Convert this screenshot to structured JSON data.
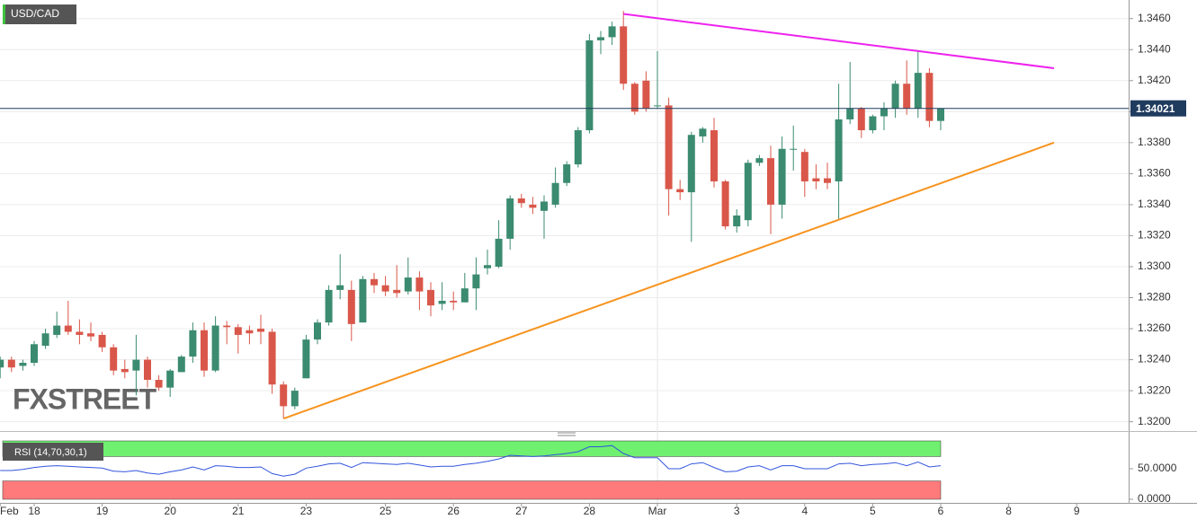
{
  "chart_data": {
    "type": "candlestick",
    "title": "USD/CAD",
    "watermark": "FXSTREET",
    "categories": [
      "Feb",
      null,
      null,
      "18",
      null,
      null,
      null,
      null,
      null,
      "19",
      null,
      null,
      null,
      null,
      null,
      "20",
      null,
      null,
      null,
      null,
      null,
      "21",
      null,
      null,
      null,
      null,
      null,
      "23",
      null,
      null,
      null,
      null,
      null,
      null,
      "25",
      null,
      null,
      null,
      null,
      null,
      "26",
      null,
      null,
      null,
      null,
      null,
      "27",
      null,
      null,
      null,
      null,
      null,
      "28",
      null,
      null,
      null,
      null,
      null,
      "Mar",
      null,
      null,
      null,
      null,
      null,
      null,
      "3",
      null,
      null,
      null,
      null,
      null,
      "4",
      null,
      null,
      null,
      null,
      null,
      "5",
      null,
      null,
      null,
      null,
      null,
      "6",
      null,
      null,
      null,
      null,
      null,
      "8",
      null,
      null,
      null,
      null,
      null,
      "9"
    ],
    "open": [
      1.3235,
      1.324,
      1.3236,
      1.3238,
      1.3249,
      1.3256,
      1.3262,
      1.3258,
      1.3257,
      1.3256,
      1.3248,
      1.3234,
      1.3233,
      1.324,
      1.3227,
      1.3222,
      1.3232,
      1.3242,
      1.3259,
      1.3233,
      1.3262,
      1.3261,
      1.3259,
      1.326,
      1.3258,
      1.3224,
      1.321,
      1.3228,
      1.3253,
      1.3264,
      1.3285,
      1.3285,
      1.3264,
      1.3292,
      1.3288,
      1.3285,
      1.3284,
      1.3293,
      1.3285,
      1.3276,
      1.3278,
      1.3277,
      1.3286,
      1.3299,
      1.33,
      1.3318,
      1.3344,
      1.334,
      1.3336,
      1.334,
      1.3354,
      1.3366,
      1.3388,
      1.3446,
      1.3448,
      1.3455,
      1.3418,
      1.342,
      1.3404,
      1.3404,
      1.335,
      1.3348,
      1.3384,
      1.3388,
      1.3355,
      1.3326,
      1.333,
      1.3367,
      1.337,
      1.334,
      1.3376,
      1.3374,
      1.3357,
      1.3357,
      1.3355,
      1.3395,
      1.3402,
      1.3388,
      1.3397,
      1.3402,
      1.3418,
      1.3402,
      1.3425,
      1.3394,
      null,
      null,
      null,
      null,
      null,
      null,
      null,
      null,
      null,
      null,
      null,
      null
    ],
    "high": [
      1.3242,
      1.3242,
      1.324,
      1.3252,
      1.326,
      1.3271,
      1.3278,
      1.3266,
      1.3264,
      1.3258,
      1.325,
      1.324,
      1.3256,
      1.3242,
      1.323,
      1.3234,
      1.3243,
      1.3264,
      1.3264,
      1.3268,
      1.3265,
      1.3263,
      1.3262,
      1.3269,
      1.326,
      1.3226,
      1.3222,
      1.3256,
      1.3266,
      1.3288,
      1.3308,
      1.3291,
      1.3294,
      1.3296,
      1.3294,
      1.3301,
      1.3306,
      1.3297,
      1.329,
      1.329,
      1.3284,
      1.3296,
      1.3306,
      1.3311,
      1.333,
      1.3346,
      1.3347,
      1.3345,
      1.3346,
      1.3364,
      1.3368,
      1.339,
      1.345,
      1.3452,
      1.3458,
      1.3465,
      1.3419,
      1.3426,
      1.3439,
      1.3409,
      1.3356,
      1.3387,
      1.339,
      1.3396,
      1.3356,
      1.3337,
      1.3369,
      1.3372,
      1.3378,
      1.3384,
      1.3391,
      1.3376,
      1.3366,
      1.3367,
      1.3418,
      1.3432,
      1.3403,
      1.3398,
      1.3406,
      1.342,
      1.3433,
      1.3439,
      1.3428,
      1.3402,
      null,
      null,
      null,
      null,
      null,
      null,
      null,
      null,
      null,
      null,
      null,
      null
    ],
    "low": [
      1.3228,
      1.3232,
      1.3233,
      1.3236,
      1.3247,
      1.3254,
      1.3256,
      1.325,
      1.3252,
      1.3245,
      1.323,
      1.3228,
      1.3217,
      1.3222,
      1.322,
      1.3216,
      1.3232,
      1.3238,
      1.3229,
      1.3232,
      1.325,
      1.3244,
      1.325,
      1.325,
      1.3218,
      1.3202,
      1.3208,
      1.3228,
      1.325,
      1.3262,
      1.3279,
      1.3252,
      1.3264,
      1.3283,
      1.3281,
      1.328,
      1.3282,
      1.3272,
      1.3268,
      1.3272,
      1.3272,
      1.3277,
      1.3272,
      1.3295,
      1.3299,
      1.3311,
      1.3338,
      1.3334,
      1.3318,
      1.3338,
      1.3352,
      1.3364,
      1.3386,
      1.3437,
      1.3443,
      1.3414,
      1.3398,
      1.34,
      1.3402,
      1.3333,
      1.3343,
      1.3316,
      1.338,
      1.3351,
      1.3324,
      1.3322,
      1.3326,
      1.3365,
      1.3321,
      1.3331,
      1.3362,
      1.3345,
      1.335,
      1.335,
      1.333,
      1.3392,
      1.3383,
      1.3386,
      1.3388,
      1.3396,
      1.3398,
      1.3396,
      1.339,
      1.3388,
      null,
      null,
      null,
      null,
      null,
      null,
      null,
      null,
      null,
      null,
      null,
      null
    ],
    "close": [
      1.324,
      1.3235,
      1.3238,
      1.325,
      1.3257,
      1.3262,
      1.3258,
      1.3256,
      1.3255,
      1.3248,
      1.3233,
      1.3232,
      1.324,
      1.3227,
      1.3222,
      1.3233,
      1.3242,
      1.3259,
      1.3233,
      1.3262,
      1.3261,
      1.3256,
      1.3257,
      1.3258,
      1.3224,
      1.321,
      1.322,
      1.3253,
      1.3264,
      1.3285,
      1.3288,
      1.3263,
      1.3292,
      1.3288,
      1.3284,
      1.3283,
      1.3293,
      1.3284,
      1.3275,
      1.3278,
      1.3277,
      1.3286,
      1.3295,
      1.3301,
      1.3318,
      1.3344,
      1.3341,
      1.3338,
      1.3342,
      1.3354,
      1.3366,
      1.3388,
      1.3446,
      1.3448,
      1.3455,
      1.3418,
      1.34,
      1.3402,
      1.3404,
      1.335,
      1.3348,
      1.3385,
      1.3389,
      1.3355,
      1.3326,
      1.3333,
      1.3367,
      1.337,
      1.334,
      1.3376,
      1.3376,
      1.3355,
      1.3355,
      1.3354,
      1.3395,
      1.3402,
      1.3388,
      1.3397,
      1.3402,
      1.3418,
      1.3402,
      1.3425,
      1.3394,
      1.3402,
      null,
      null,
      null,
      null,
      null,
      null,
      null,
      null,
      null,
      null,
      null,
      null
    ],
    "up_color": "#3b8b70",
    "down_color": "#d9574a",
    "ylim": [
      1.3194,
      1.3472
    ],
    "yticks": [
      {
        "value": 1.32,
        "label": "1.3200"
      },
      {
        "value": 1.322,
        "label": "1.3220"
      },
      {
        "value": 1.324,
        "label": "1.3240"
      },
      {
        "value": 1.326,
        "label": "1.3260"
      },
      {
        "value": 1.328,
        "label": "1.3280"
      },
      {
        "value": 1.33,
        "label": "1.3300"
      },
      {
        "value": 1.332,
        "label": "1.3320"
      },
      {
        "value": 1.334,
        "label": "1.3340"
      },
      {
        "value": 1.336,
        "label": "1.3360"
      },
      {
        "value": 1.338,
        "label": "1.3380"
      },
      {
        "value": 1.34,
        "label": "1.3400"
      },
      {
        "value": 1.342,
        "label": "1.3420"
      },
      {
        "value": 1.344,
        "label": "1.3440"
      },
      {
        "value": 1.346,
        "label": "1.3460"
      }
    ],
    "grid": true,
    "last_price": 1.34021,
    "last_price_color": "#1f3b5e",
    "trendlines": [
      {
        "color": "#ee22ee",
        "points": [
          [
            55,
            1.3463
          ],
          [
            93,
            1.3428
          ]
        ]
      },
      {
        "color": "#f7931e",
        "points": [
          [
            25,
            1.3202
          ],
          [
            93,
            1.338
          ]
        ]
      }
    ],
    "rsi": {
      "label": "RSI (14,70,30,1)",
      "color": "#3355dd",
      "values": [
        47,
        47,
        49,
        52,
        54,
        55,
        54,
        53,
        52,
        51,
        46,
        45,
        47,
        43,
        41,
        45,
        48,
        53,
        48,
        55,
        54,
        52,
        52,
        53,
        42,
        38,
        41,
        51,
        54,
        58,
        59,
        52,
        60,
        59,
        58,
        57,
        59,
        56,
        53,
        54,
        54,
        57,
        59,
        62,
        66,
        72,
        71,
        70,
        71,
        73,
        75,
        78,
        86,
        86,
        88,
        75,
        68,
        68,
        68,
        50,
        50,
        58,
        60,
        52,
        45,
        46,
        53,
        55,
        48,
        55,
        55,
        50,
        50,
        50,
        58,
        59,
        55,
        57,
        58,
        60,
        55,
        61,
        53,
        55,
        null,
        null,
        null,
        null,
        null,
        null,
        null,
        null,
        null,
        null,
        null,
        null
      ],
      "ylim": [
        0,
        100
      ],
      "yticks": [
        {
          "value": 50,
          "label": "50.0000"
        },
        {
          "value": 0,
          "label": "0.0000"
        }
      ],
      "levels": [
        30,
        70
      ],
      "level_colors": [
        "#ff7b7b",
        "#6ff06f"
      ]
    }
  }
}
